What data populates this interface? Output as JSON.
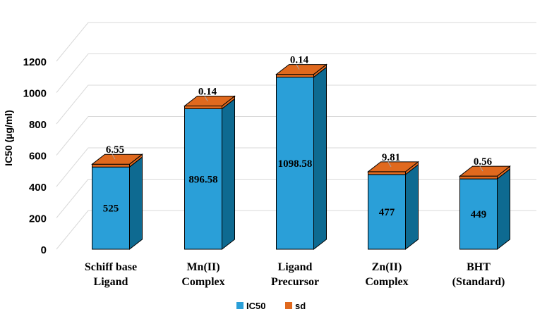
{
  "chart_data": {
    "type": "bar",
    "title": "",
    "xlabel": "",
    "ylabel": "IC50 (µg/ml)",
    "ylim": [
      0,
      1200
    ],
    "yticks": [
      0,
      200,
      400,
      600,
      800,
      1000,
      1200
    ],
    "grid": true,
    "legend_position": "bottom-center",
    "categories": [
      [
        "Schiff base",
        "Ligand"
      ],
      [
        "Mn(II)",
        "Complex"
      ],
      [
        "Ligand",
        "Precursor"
      ],
      [
        "Zn(II)",
        "Complex"
      ],
      [
        "BHT",
        "(Standard)"
      ]
    ],
    "value_labels": [
      "525",
      "896.58",
      "1098.58",
      "477",
      "449"
    ],
    "sd_labels": [
      "6.55",
      "0.14",
      "0.14",
      "9.81",
      "0.56"
    ],
    "series": [
      {
        "name": "IC50",
        "values": [
          525,
          896.58,
          1098.58,
          477,
          449
        ]
      },
      {
        "name": "sd",
        "values": [
          6.55,
          0.14,
          0.14,
          9.81,
          0.56
        ]
      }
    ],
    "colors": {
      "ic50_front": "#2a9fd8",
      "ic50_side": "#0e6a91",
      "sd_top": "#e0691e",
      "grid": "#d9d9d9"
    }
  }
}
